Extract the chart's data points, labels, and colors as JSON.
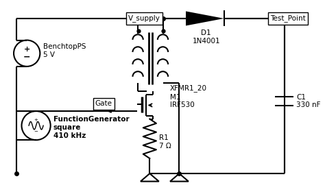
{
  "bg_color": "#ffffff",
  "line_color": "#000000",
  "line_width": 1.5,
  "labels": {
    "v_supply": "V_supply",
    "test_point": "Test_Point",
    "benchtop": "BenchtopPS\n5 V",
    "gate": "Gate",
    "func_gen": "FunctionGenerator\nsquare\n410 kHz",
    "transformer": "XFMR1_20",
    "mosfet": "M1\nIRF530",
    "diode": "D1\n1N4001",
    "resistor": "R1\n7 Ω",
    "capacitor": "C1\n330 nF"
  }
}
